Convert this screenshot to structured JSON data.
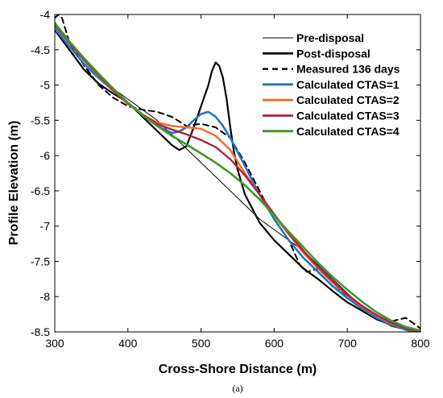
{
  "chart_data": {
    "type": "line",
    "title": "",
    "xlabel": "Cross-Shore Distance (m)",
    "ylabel": "Profile Elevation (m)",
    "caption": "(a)",
    "xlim": [
      300,
      800
    ],
    "ylim": [
      -8.5,
      -4
    ],
    "xticks": [
      300,
      400,
      500,
      600,
      700,
      800
    ],
    "xtick_labels": [
      "300",
      "400",
      "500",
      "600",
      "700",
      "800"
    ],
    "yticks": [
      -4,
      -4.5,
      -5,
      -5.5,
      -6,
      -6.5,
      -7,
      -7.5,
      -8,
      -8.5
    ],
    "ytick_labels": [
      "-4",
      "-4.5",
      "-5",
      "-5.5",
      "-6",
      "-6.5",
      "-7",
      "-7.5",
      "-8",
      "-8.5"
    ],
    "grid": false,
    "legend_position": "top-right",
    "series": [
      {
        "name": "Pre-disposal",
        "color": "#000000",
        "width": 1,
        "dash": "",
        "x": [
          300,
          320,
          340,
          360,
          380,
          400,
          420,
          440,
          460,
          480,
          500,
          520,
          540,
          560,
          580,
          600,
          620,
          640,
          660,
          680,
          700,
          720,
          740,
          760,
          780,
          800
        ],
        "y": [
          -4.2,
          -4.45,
          -4.7,
          -4.9,
          -5.05,
          -5.2,
          -5.35,
          -5.5,
          -5.7,
          -5.9,
          -6.1,
          -6.3,
          -6.5,
          -6.7,
          -6.9,
          -7.05,
          -7.2,
          -7.35,
          -7.55,
          -7.75,
          -7.95,
          -8.15,
          -8.3,
          -8.42,
          -8.47,
          -8.5
        ]
      },
      {
        "name": "Post-disposal",
        "color": "#000000",
        "width": 2.2,
        "dash": "",
        "x": [
          300,
          320,
          340,
          360,
          380,
          400,
          420,
          440,
          460,
          470,
          480,
          490,
          500,
          510,
          515,
          520,
          525,
          530,
          535,
          540,
          545,
          550,
          560,
          570,
          580,
          600,
          620,
          640,
          660,
          680,
          700,
          720,
          740,
          760,
          780,
          800
        ],
        "y": [
          -4.22,
          -4.5,
          -4.78,
          -4.98,
          -5.12,
          -5.25,
          -5.45,
          -5.65,
          -5.85,
          -5.92,
          -5.87,
          -5.6,
          -5.3,
          -5.0,
          -4.8,
          -4.68,
          -4.73,
          -4.9,
          -5.2,
          -5.6,
          -5.95,
          -6.2,
          -6.55,
          -6.75,
          -6.95,
          -7.2,
          -7.4,
          -7.6,
          -7.75,
          -7.92,
          -8.08,
          -8.2,
          -8.32,
          -8.4,
          -8.45,
          -8.5
        ]
      },
      {
        "name": "Measured 136 days",
        "color": "#000000",
        "width": 2,
        "dash": "7,5",
        "x": [
          300,
          305,
          310,
          320,
          340,
          360,
          380,
          400,
          420,
          440,
          460,
          480,
          500,
          520,
          540,
          560,
          580,
          600,
          620,
          635,
          645,
          660,
          680,
          700,
          720,
          740,
          760,
          780,
          800
        ],
        "y": [
          -4.05,
          -4.0,
          -4.05,
          -4.4,
          -4.72,
          -5.0,
          -5.18,
          -5.3,
          -5.35,
          -5.38,
          -5.45,
          -5.58,
          -5.55,
          -5.6,
          -5.75,
          -6.1,
          -6.5,
          -6.9,
          -7.2,
          -7.55,
          -7.65,
          -7.6,
          -7.8,
          -8.0,
          -8.15,
          -8.28,
          -8.35,
          -8.3,
          -8.45
        ]
      },
      {
        "name": "Calculated CTAS=1",
        "color": "#1f77c4",
        "width": 2.6,
        "dash": "",
        "x": [
          300,
          320,
          340,
          360,
          380,
          400,
          420,
          440,
          460,
          470,
          480,
          490,
          500,
          510,
          520,
          530,
          540,
          550,
          560,
          580,
          600,
          620,
          640,
          660,
          680,
          700,
          720,
          740,
          760,
          780,
          800
        ],
        "y": [
          -4.2,
          -4.45,
          -4.7,
          -4.9,
          -5.08,
          -5.25,
          -5.42,
          -5.58,
          -5.68,
          -5.66,
          -5.6,
          -5.5,
          -5.41,
          -5.38,
          -5.45,
          -5.58,
          -5.75,
          -5.95,
          -6.15,
          -6.55,
          -6.9,
          -7.2,
          -7.45,
          -7.65,
          -7.85,
          -8.02,
          -8.17,
          -8.3,
          -8.4,
          -8.47,
          -8.52
        ]
      },
      {
        "name": "Calculated CTAS=2",
        "color": "#f06a25",
        "width": 2.4,
        "dash": "",
        "x": [
          300,
          320,
          340,
          360,
          380,
          400,
          420,
          440,
          460,
          480,
          500,
          520,
          540,
          560,
          580,
          600,
          620,
          640,
          660,
          680,
          700,
          720,
          740,
          760,
          780,
          800
        ],
        "y": [
          -4.15,
          -4.4,
          -4.65,
          -4.87,
          -5.08,
          -5.27,
          -5.42,
          -5.53,
          -5.58,
          -5.6,
          -5.62,
          -5.72,
          -5.92,
          -6.25,
          -6.55,
          -6.85,
          -7.12,
          -7.38,
          -7.6,
          -7.8,
          -7.98,
          -8.14,
          -8.27,
          -8.38,
          -8.45,
          -8.5
        ]
      },
      {
        "name": "Calculated CTAS=3",
        "color": "#b01f3e",
        "width": 2.4,
        "dash": "",
        "x": [
          300,
          320,
          340,
          360,
          380,
          400,
          420,
          440,
          460,
          480,
          500,
          520,
          540,
          560,
          580,
          600,
          620,
          640,
          660,
          680,
          700,
          720,
          740,
          760,
          780,
          800
        ],
        "y": [
          -4.15,
          -4.4,
          -4.64,
          -4.86,
          -5.07,
          -5.26,
          -5.42,
          -5.55,
          -5.63,
          -5.7,
          -5.78,
          -5.88,
          -6.05,
          -6.28,
          -6.55,
          -6.83,
          -7.1,
          -7.35,
          -7.58,
          -7.78,
          -7.97,
          -8.13,
          -8.26,
          -8.37,
          -8.45,
          -8.5
        ]
      },
      {
        "name": "Calculated CTAS=4",
        "color": "#3e9a2c",
        "width": 2.6,
        "dash": "",
        "x": [
          300,
          320,
          340,
          360,
          380,
          400,
          420,
          440,
          460,
          480,
          500,
          520,
          540,
          560,
          580,
          600,
          620,
          640,
          660,
          680,
          700,
          720,
          740,
          760,
          780,
          800
        ],
        "y": [
          -4.12,
          -4.38,
          -4.62,
          -4.84,
          -5.05,
          -5.25,
          -5.43,
          -5.58,
          -5.72,
          -5.84,
          -5.97,
          -6.1,
          -6.25,
          -6.42,
          -6.62,
          -6.85,
          -7.08,
          -7.3,
          -7.52,
          -7.72,
          -7.9,
          -8.07,
          -8.22,
          -8.34,
          -8.43,
          -8.48
        ]
      }
    ]
  }
}
